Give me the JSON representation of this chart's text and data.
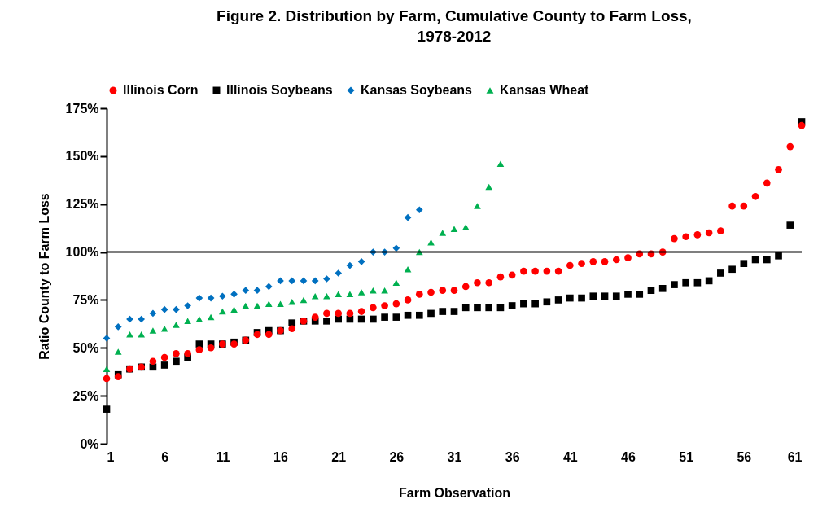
{
  "chart_data": {
    "type": "scatter",
    "title": "Figure 2. Distribution by Farm, Cumulative County to Farm Loss, 1978-2012",
    "xlabel": "Farm Observation",
    "ylabel": "Ratio County to Farm Loss",
    "xlim": [
      1,
      61
    ],
    "xticks": [
      1,
      6,
      11,
      16,
      21,
      26,
      31,
      36,
      41,
      46,
      51,
      56,
      61
    ],
    "ylim": [
      0,
      175
    ],
    "yticks": [
      {
        "value": 0,
        "label": "0%"
      },
      {
        "value": 25,
        "label": "25%"
      },
      {
        "value": 50,
        "label": "50%"
      },
      {
        "value": 75,
        "label": "75%"
      },
      {
        "value": 100,
        "label": "100%"
      },
      {
        "value": 125,
        "label": "125%"
      },
      {
        "value": 150,
        "label": "150%"
      },
      {
        "value": 175,
        "label": "175%"
      }
    ],
    "ref_lines": [
      {
        "axis": "y",
        "value": 100,
        "color": "#000000"
      }
    ],
    "legend": "top",
    "grid": false,
    "x": [
      1,
      2,
      3,
      4,
      5,
      6,
      7,
      8,
      9,
      10,
      11,
      12,
      13,
      14,
      15,
      16,
      17,
      18,
      19,
      20,
      21,
      22,
      23,
      24,
      25,
      26,
      27,
      28,
      29,
      30,
      31,
      32,
      33,
      34,
      35,
      36,
      37,
      38,
      39,
      40,
      41,
      42,
      43,
      44,
      45,
      46,
      47,
      48,
      49,
      50,
      51,
      52,
      53,
      54,
      55,
      56,
      57,
      58,
      59,
      60,
      61
    ],
    "series": [
      {
        "name": "Illinois Corn",
        "color": "#ff0000",
        "marker": "circle",
        "values": [
          34,
          35,
          39,
          40,
          43,
          45,
          47,
          47,
          49,
          50,
          52,
          52,
          54,
          57,
          57,
          59,
          60,
          64,
          66,
          68,
          68,
          68,
          69,
          71,
          72,
          73,
          75,
          78,
          79,
          80,
          80,
          82,
          84,
          84,
          87,
          88,
          90,
          90,
          90,
          90,
          93,
          94,
          95,
          95,
          96,
          97,
          99,
          99,
          100,
          107,
          108,
          109,
          110,
          111,
          124,
          124,
          129,
          136,
          143,
          155,
          166
        ]
      },
      {
        "name": "Illinois Soybeans",
        "color": "#000000",
        "marker": "square",
        "values": [
          18,
          36,
          39,
          40,
          40,
          41,
          43,
          45,
          52,
          52,
          52,
          53,
          54,
          58,
          59,
          59,
          63,
          64,
          64,
          64,
          65,
          65,
          65,
          65,
          66,
          66,
          67,
          67,
          68,
          69,
          69,
          71,
          71,
          71,
          71,
          72,
          73,
          73,
          74,
          75,
          76,
          76,
          77,
          77,
          77,
          78,
          78,
          80,
          81,
          83,
          84,
          84,
          85,
          89,
          91,
          94,
          96,
          96,
          98,
          114,
          168
        ]
      },
      {
        "name": "Kansas Soybeans",
        "color": "#0070c0",
        "marker": "diamond",
        "x": [
          1,
          2,
          3,
          4,
          5,
          6,
          7,
          8,
          9,
          10,
          11,
          12,
          13,
          14,
          15,
          16,
          17,
          18,
          19,
          20,
          21,
          22,
          23,
          24,
          25,
          26,
          27,
          28
        ],
        "values": [
          55,
          61,
          65,
          65,
          68,
          70,
          70,
          72,
          76,
          76,
          77,
          78,
          80,
          80,
          82,
          85,
          85,
          85,
          85,
          86,
          89,
          93,
          95,
          100,
          100,
          102,
          118,
          122
        ]
      },
      {
        "name": "Kansas Wheat",
        "color": "#00b050",
        "marker": "triangle",
        "x": [
          1,
          2,
          3,
          4,
          5,
          6,
          7,
          8,
          9,
          10,
          11,
          12,
          13,
          14,
          15,
          16,
          17,
          18,
          19,
          20,
          21,
          22,
          23,
          24,
          25,
          26,
          27,
          28,
          29,
          30,
          31,
          32,
          33,
          34,
          35
        ],
        "values": [
          39,
          48,
          57,
          57,
          59,
          60,
          62,
          64,
          65,
          66,
          69,
          70,
          72,
          72,
          73,
          73,
          74,
          75,
          77,
          77,
          78,
          78,
          79,
          80,
          80,
          84,
          91,
          100,
          105,
          110,
          112,
          113,
          124,
          134,
          146
        ]
      }
    ]
  }
}
